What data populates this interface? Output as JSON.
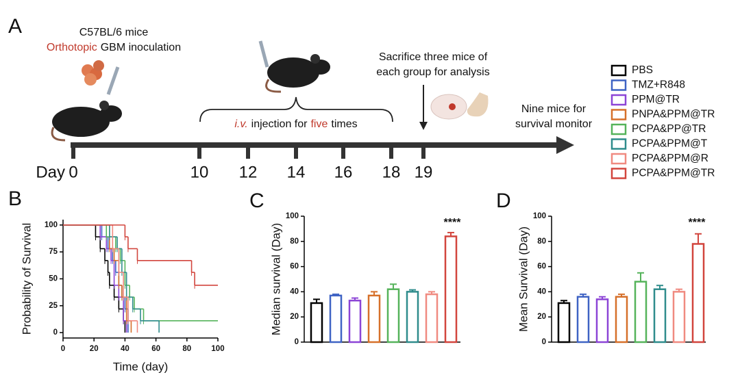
{
  "panel_labels": [
    "A",
    "B",
    "C",
    "D"
  ],
  "timeline": {
    "day_label": "Day",
    "days": [
      0,
      10,
      12,
      14,
      16,
      18,
      19
    ],
    "inoculation": [
      "C57BL/6 mice",
      "Orthotopic",
      "GBM inoculation"
    ],
    "injection": [
      "i.v.",
      "injection for",
      "five",
      "times"
    ],
    "sacrifice": [
      "Sacrifice three mice of",
      "each group for analysis"
    ],
    "survival": [
      "Nine mice for",
      "survival monitor"
    ]
  },
  "chart_data": [
    {
      "type": "survival",
      "y_label": "Probability of Survival",
      "x_label": "Time (day)",
      "xlim": [
        0,
        100
      ],
      "xticks": [
        0,
        20,
        40,
        60,
        80,
        100
      ],
      "ylim": [
        -5,
        105
      ],
      "yticks": [
        0,
        25,
        50,
        75,
        100
      ],
      "series": [
        {
          "name": "PBS",
          "color": "#000000",
          "x": [
            0,
            21,
            24,
            27,
            29,
            30,
            33,
            36,
            39,
            40
          ],
          "values": [
            100,
            89,
            78,
            67,
            56,
            44,
            33,
            22,
            11,
            0
          ]
        },
        {
          "name": "TMZ+R848",
          "color": "#3f63c4",
          "x": [
            0,
            25,
            29,
            32,
            34,
            36,
            38,
            40,
            42
          ],
          "values": [
            100,
            89,
            78,
            67,
            56,
            44,
            33,
            22,
            0
          ]
        },
        {
          "name": "PPM@TR",
          "color": "#8c44d6",
          "x": [
            0,
            24,
            28,
            31,
            33,
            36,
            39,
            41
          ],
          "values": [
            100,
            89,
            78,
            67,
            44,
            33,
            11,
            0
          ]
        },
        {
          "name": "PNPA&PPM@TR",
          "color": "#d6702a",
          "x": [
            0,
            30,
            33,
            36,
            38,
            41,
            44
          ],
          "values": [
            100,
            78,
            67,
            44,
            33,
            11,
            0
          ]
        },
        {
          "name": "PCPA&PP@TR",
          "color": "#55b35a",
          "x": [
            0,
            28,
            34,
            37,
            40,
            43,
            46,
            52,
            100
          ],
          "values": [
            100,
            89,
            78,
            67,
            44,
            33,
            22,
            11,
            11
          ]
        },
        {
          "name": "PCPA&PPM@T",
          "color": "#2f8c8c",
          "x": [
            0,
            30,
            35,
            38,
            41,
            45,
            50,
            62
          ],
          "values": [
            100,
            89,
            78,
            56,
            33,
            22,
            11,
            0
          ]
        },
        {
          "name": "PCPA&PPM@R",
          "color": "#f08a80",
          "x": [
            0,
            32,
            36,
            39,
            42,
            48
          ],
          "values": [
            100,
            78,
            56,
            33,
            11,
            0
          ]
        },
        {
          "name": "PCPA&PPM@TR",
          "color": "#d2453d",
          "x": [
            0,
            40,
            42,
            48,
            83,
            85,
            100
          ],
          "values": [
            100,
            89,
            78,
            67,
            56,
            44,
            44
          ]
        }
      ]
    },
    {
      "type": "bar",
      "y_label": "Median survival (Day)",
      "ylim": [
        0,
        100
      ],
      "yticks": [
        0,
        20,
        40,
        60,
        80,
        100
      ],
      "values": [
        31,
        37,
        33,
        37,
        42,
        40,
        38,
        84
      ],
      "errors": [
        3,
        1,
        2,
        3,
        4,
        1.5,
        2,
        3
      ],
      "annotation": "****"
    },
    {
      "type": "bar",
      "y_label": "Mean Survival (Day)",
      "ylim": [
        0,
        100
      ],
      "yticks": [
        0,
        20,
        40,
        60,
        80,
        100
      ],
      "values": [
        31,
        36,
        34,
        36,
        48,
        42,
        40,
        78
      ],
      "errors": [
        2,
        2,
        2,
        2,
        7,
        3,
        2,
        8
      ],
      "annotation": "****"
    }
  ]
}
